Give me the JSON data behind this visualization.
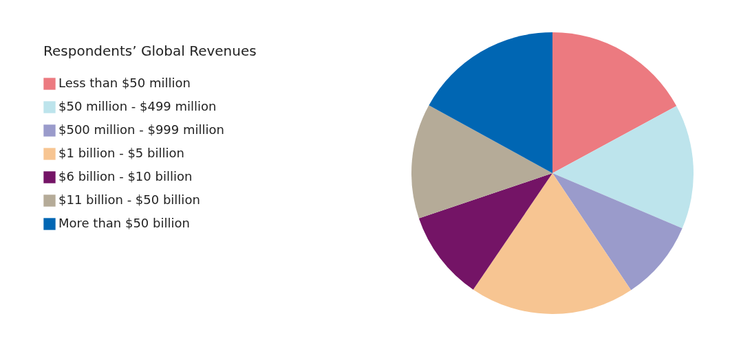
{
  "chart_data": {
    "type": "pie",
    "legend_title": "Respondents’ Global Revenues",
    "legend": "left",
    "categories": [
      "Less than $50 million",
      "$50 million - $499 million",
      "$500 million - $999 million",
      "$1 billion - $5 billion",
      "$6 billion - $10 billion",
      "$11 billion - $50 billion",
      "More than $50 billion"
    ],
    "values": [
      17.1,
      14.3,
      9.2,
      18.9,
      10.3,
      13.2,
      17.0
    ],
    "colors": [
      "#ec7a80",
      "#bde4ec",
      "#9a9bcb",
      "#f7c592",
      "#741466",
      "#b5ab98",
      "#0066b3"
    ]
  }
}
